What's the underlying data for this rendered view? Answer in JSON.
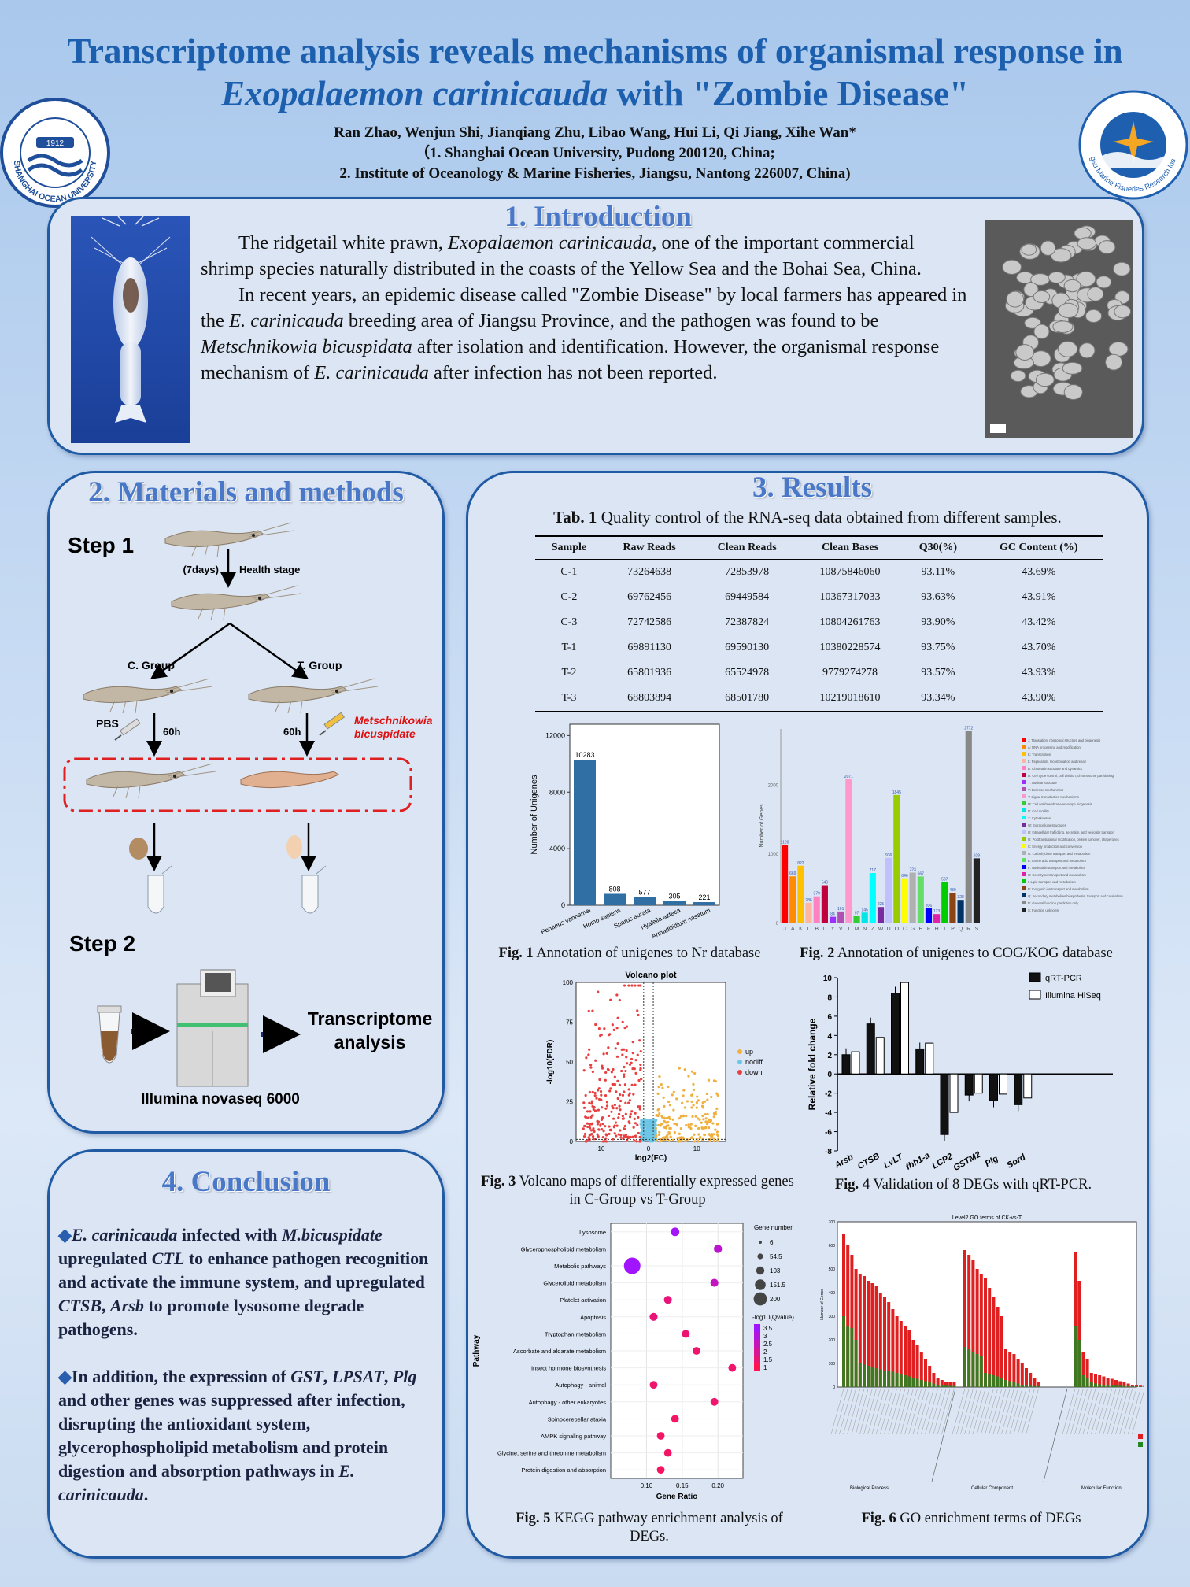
{
  "header": {
    "title_line1": "Transcriptome analysis reveals mechanisms of organismal response in",
    "title_species": "Exopalaemon carinicauda",
    "title_rest": " with \"Zombie Disease\"",
    "authors": "Ran Zhao, Wenjun Shi, Jianqiang Zhu, Libao Wang, Hui Li, Qi Jiang, Xihe Wan*",
    "affiliation1": "（1. Shanghai Ocean University, Pudong 200120, China;",
    "affiliation2": "2. Institute of Oceanology & Marine Fisheries, Jiangsu, Nantong 226007, China)",
    "logo_left_text": "SHANGHAI OCEAN UNIVERSITY",
    "logo_left_year": "1912",
    "logo_right_text": "Jiangsu Marine Fisheries Research Institute"
  },
  "intro": {
    "title": "1. Introduction",
    "p1_a": "The ridgetail white prawn, ",
    "p1_em": "Exopalaemon carinicauda",
    "p1_b": ", one of the important commercial shrimp species naturally distributed in the coasts of the Yellow Sea and the Bohai Sea, China.",
    "p2_a": "In recent years, an epidemic disease called \"Zombie Disease\" by local farmers has appeared in the ",
    "p2_em1": "E. carinicauda",
    "p2_b": " breeding area of Jiangsu Province, and the pathogen was found to be ",
    "p2_em2": "Metschnikowia bicuspidata",
    "p2_c": " after isolation and identification. However, the organismal response mechanism of ",
    "p2_em3": "E. carinicauda",
    "p2_d": " after infection has not been reported."
  },
  "methods": {
    "title": "2. Materials and methods",
    "step1": "Step 1",
    "days": "(7days)",
    "health": "Health stage",
    "c_group": "C. Group",
    "t_group": "T. Group",
    "pbs": "PBS",
    "h60a": "60h",
    "h60b": "60h",
    "pathogen": "Metschnikowia bicuspidate",
    "step2": "Step 2",
    "transcriptome": "Transcriptome analysis",
    "illumina": "Illumina novaseq 6000"
  },
  "conclusion": {
    "title": "4. Conclusion",
    "b1": "E. carinicauda infected with M.bicuspidate upregulated CTL to enhance pathogen recognition and activate the immune system, and upregulated CTSB, Arsb to promote lysosome degrade pathogens.",
    "b2": "In addition, the expression of GST, LPSAT, Plg and other genes was suppressed after infection, disrupting the antioxidant system, glycerophospholipid metabolism and protein digestion and absorption pathways in E. carinicauda."
  },
  "results": {
    "title": "3. Results",
    "tab1_label": "Tab. 1",
    "tab1_caption": " Quality control of the RNA-seq data obtained from different samples.",
    "table": {
      "headers": [
        "Sample",
        "Raw Reads",
        "Clean Reads",
        "Clean Bases",
        "Q30(%)",
        "GC Content (%)"
      ],
      "rows": [
        [
          "C-1",
          "73264638",
          "72853978",
          "10875846060",
          "93.11%",
          "43.69%"
        ],
        [
          "C-2",
          "69762456",
          "69449584",
          "10367317033",
          "93.63%",
          "43.91%"
        ],
        [
          "C-3",
          "72742586",
          "72387824",
          "10804261763",
          "93.90%",
          "43.42%"
        ],
        [
          "T-1",
          "69891130",
          "69590130",
          "10380228574",
          "93.75%",
          "43.70%"
        ],
        [
          "T-2",
          "65801936",
          "65524978",
          "9779274278",
          "93.57%",
          "43.93%"
        ],
        [
          "T-3",
          "68803894",
          "68501780",
          "10219018610",
          "93.34%",
          "43.90%"
        ]
      ]
    },
    "fig1_label": "Fig. 1",
    "fig1_caption": " Annotation of unigenes to Nr database",
    "fig2_label": "Fig. 2",
    "fig2_caption": " Annotation of unigenes to COG/KOG database",
    "fig3_label": "Fig. 3",
    "fig3_caption": " Volcano maps of differentially expressed genes in C-Group vs T-Group",
    "fig4_label": "Fig. 4",
    "fig4_caption": " Validation of 8 DEGs with qRT-PCR.",
    "fig5_label": "Fig. 5",
    "fig5_caption": " KEGG pathway enrichment analysis of DEGs.",
    "fig6_label": "Fig. 6",
    "fig6_caption": " GO enrichment terms of DEGs"
  },
  "chart_data": [
    {
      "type": "bar",
      "id": "fig1",
      "categories": [
        "Penaeus vannamei",
        "Homo sapiens",
        "Sparus aurata",
        "Hyalella azteca",
        "Armadillidium nasatum"
      ],
      "values": [
        10283,
        808,
        577,
        305,
        221
      ],
      "ylabel": "Number of Unigenes",
      "ylim": [
        0,
        12800
      ],
      "yticks": [
        0,
        4000,
        8000,
        12000
      ],
      "color": "#2f6fa4"
    },
    {
      "type": "bar",
      "id": "fig2",
      "categories": [
        "J",
        "A",
        "K",
        "L",
        "B",
        "D",
        "Y",
        "V",
        "T",
        "M",
        "N",
        "Z",
        "W",
        "U",
        "O",
        "C",
        "G",
        "E",
        "F",
        "H",
        "I",
        "P",
        "Q",
        "R",
        "S"
      ],
      "values": [
        1120,
        669,
        822,
        286,
        379,
        540,
        84,
        161,
        2071,
        97,
        145,
        717,
        225,
        936,
        1845,
        640,
        723,
        667,
        206,
        123,
        587,
        430,
        328,
        2772,
        929
      ],
      "colors": [
        "#ff0000",
        "#ff8c00",
        "#ffc000",
        "#ffb6a0",
        "#ff82c0",
        "#c0003c",
        "#9b30ff",
        "#b050b0",
        "#ff99cc",
        "#33cc33",
        "#00e5e5",
        "#00ffff",
        "#7a2aa0",
        "#c0c0ff",
        "#99cc00",
        "#ffff00",
        "#b0b0b0",
        "#66dd66",
        "#0000ff",
        "#dd22aa",
        "#00cc00",
        "#8b4513",
        "#003366",
        "#888888",
        "#222222"
      ],
      "ylabel": "Number of Genes",
      "ylim": [
        0,
        2800
      ],
      "yticks": [
        0,
        1000,
        2000
      ],
      "legend": [
        "J: Translation, ribosomal structure and biogenesis",
        "A: RNA processing and modification",
        "K: Transcription",
        "L: Replication, recombination and repair",
        "B: Chromatin structure and dynamics",
        "D: Cell cycle control, cell division, chromosome partitioning",
        "Y: Nuclear structure",
        "V: Defense mechanisms",
        "T: Signal transduction mechanisms",
        "M: Cell wall/membrane/envelope biogenesis",
        "N: Cell motility",
        "Z: Cytoskeleton",
        "W: Extracellular structures",
        "U: Intracellular trafficking, secretion, and vesicular transport",
        "O: Posttranslational modification, protein turnover, chaperones",
        "C: Energy production and conversion",
        "G: Carbohydrate transport and metabolism",
        "E: Amino acid transport and metabolism",
        "F: Nucleotide transport and metabolism",
        "H: Coenzyme transport and metabolism",
        "I: Lipid transport and metabolism",
        "P: Inorganic ion transport and metabolism",
        "Q: Secondary metabolites biosynthesis, transport and catabolism",
        "R: General function prediction only",
        "S: Function unknown"
      ]
    },
    {
      "type": "scatter",
      "id": "fig3",
      "title": "Volcano plot",
      "xlabel": "log2(FC)",
      "ylabel": "-log10(FDR)",
      "xlim": [
        -15,
        16
      ],
      "ylim": [
        0,
        100
      ],
      "xticks": [
        -10,
        0,
        10
      ],
      "yticks": [
        0,
        25,
        50,
        75,
        100
      ],
      "series": [
        {
          "name": "up",
          "color": "#f0b040"
        },
        {
          "name": "nodiff",
          "color": "#6ec6e6"
        },
        {
          "name": "down",
          "color": "#e84040"
        }
      ]
    },
    {
      "type": "bar",
      "id": "fig4",
      "categories": [
        "Arsb",
        "CTSB",
        "LvLT",
        "fbh1-a",
        "LCP2",
        "GSTM2",
        "Plg",
        "Sord"
      ],
      "series": [
        {
          "name": "qRT-PCR",
          "values": [
            2.0,
            5.2,
            8.4,
            2.6,
            -6.3,
            -2.2,
            -2.8,
            -3.2
          ],
          "color": "#111111"
        },
        {
          "name": "Illumina HiSeq",
          "values": [
            2.3,
            3.8,
            9.5,
            3.2,
            -4.0,
            -2.0,
            -2.1,
            -2.5
          ],
          "color": "#ffffff"
        }
      ],
      "ylabel": "Relative fold change",
      "ylim": [
        -8,
        10
      ],
      "yticks": [
        -8,
        -6,
        -4,
        -2,
        0,
        2,
        4,
        6,
        8,
        10
      ]
    },
    {
      "type": "scatter",
      "id": "fig5",
      "xlabel": "Gene Ratio",
      "ylabel": "Pathway",
      "xlim": [
        0.05,
        0.235
      ],
      "xticks": [
        0.1,
        0.15,
        0.2
      ],
      "size_legend_title": "Gene number",
      "size_legend": [
        "6",
        "54.5",
        "103",
        "151.5",
        "200"
      ],
      "color_legend_title": "-log10(Qvalue)",
      "color_legend": [
        "3.5",
        "3",
        "2.5",
        "2",
        "1.5",
        "1"
      ],
      "categories": [
        "Lysosome",
        "Glycerophospholipid metabolism",
        "Metabolic pathways",
        "Glycerolipid metabolism",
        "Platelet activation",
        "Apoptosis",
        "Tryptophan metabolism",
        "Ascorbate and aldarate metabolism",
        "Insect hormone biosynthesis",
        "Autophagy - animal",
        "Autophagy - other eukaryotes",
        "Spinocerebellar ataxia",
        "AMPK signaling pathway",
        "Glycine, serine and threonine metabolism",
        "Protein digestion and absorption"
      ],
      "x": [
        0.14,
        0.2,
        0.08,
        0.195,
        0.13,
        0.11,
        0.155,
        0.17,
        0.22,
        0.11,
        0.195,
        0.14,
        0.12,
        0.13,
        0.12
      ],
      "size": [
        15,
        12,
        200,
        10,
        10,
        10,
        10,
        8,
        8,
        8,
        8,
        8,
        8,
        8,
        8
      ],
      "qvalue": [
        3.4,
        2.8,
        3.5,
        2.6,
        1.6,
        1.6,
        1.5,
        1.4,
        1.4,
        1.4,
        1.4,
        1.3,
        1.3,
        1.3,
        1.2
      ]
    },
    {
      "type": "bar",
      "id": "fig6",
      "title": "Level2 GO terms of CK-vs-T",
      "groups": [
        "Biological Process",
        "Cellular Component",
        "Molecular Function"
      ],
      "ylabel": "Number of Genes",
      "ylim": [
        0,
        700
      ],
      "yticks": [
        0,
        100,
        200,
        300,
        400,
        500,
        600,
        700
      ],
      "series": [
        {
          "name": "up",
          "color": "#e02020"
        },
        {
          "name": "down",
          "color": "#228822"
        }
      ],
      "up": [
        650,
        600,
        560,
        500,
        480,
        470,
        450,
        440,
        430,
        400,
        380,
        360,
        330,
        300,
        280,
        260,
        240,
        200,
        180,
        150,
        120,
        90,
        60,
        40,
        30,
        20,
        20,
        20
      ],
      "down": [
        300,
        260,
        250,
        200,
        100,
        95,
        90,
        85,
        80,
        75,
        70,
        70,
        65,
        60,
        55,
        50,
        45,
        40,
        35,
        30,
        25,
        20,
        15,
        10,
        8,
        6,
        5,
        5
      ],
      "up_cc": [
        580,
        560,
        540,
        500,
        480,
        460,
        420,
        380,
        340,
        300,
        160,
        150,
        140,
        120,
        100,
        80,
        60,
        40,
        20
      ],
      "down_cc": [
        170,
        160,
        150,
        140,
        130,
        60,
        55,
        50,
        45,
        40,
        30,
        25,
        20,
        15,
        10,
        8,
        6,
        5,
        4
      ],
      "up_mf": [
        570,
        450,
        150,
        120,
        60,
        55,
        50,
        45,
        40,
        35,
        30,
        25,
        20,
        15,
        10,
        8,
        6,
        5
      ],
      "down_mf": [
        260,
        200,
        50,
        40,
        20,
        15,
        12,
        10,
        10,
        8,
        6,
        6,
        5,
        4,
        3,
        3,
        2,
        2
      ]
    }
  ]
}
